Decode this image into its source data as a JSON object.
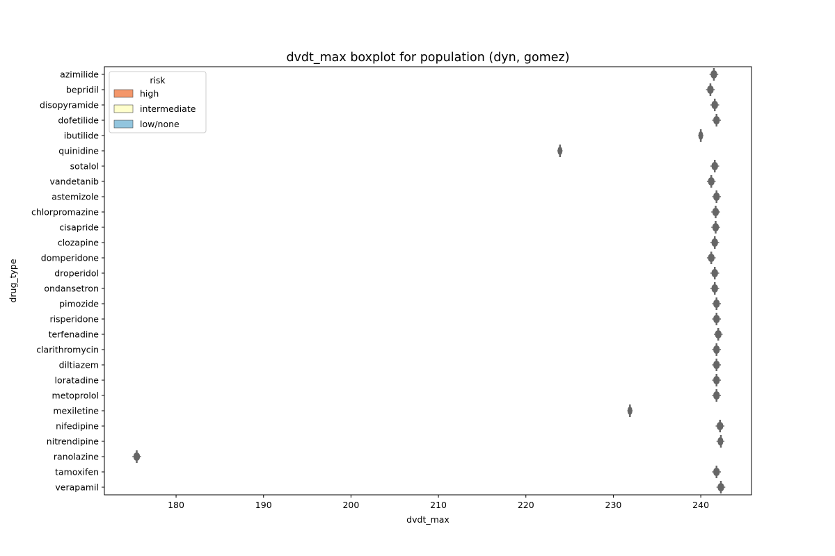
{
  "colors": {
    "high": "#f4976a",
    "intermediate": "#ffffcc",
    "low_none": "#92c5de",
    "box_gray": "#666666",
    "axis": "#000000"
  },
  "chart_data": {
    "type": "boxplot",
    "orientation": "horizontal",
    "title": "dvdt_max boxplot for population (dyn, gomez)",
    "xlabel": "dvdt_max",
    "ylabel": "drug_type",
    "xlim": [
      171.8,
      245.8
    ],
    "xticks": [
      180,
      190,
      200,
      210,
      220,
      230,
      240
    ],
    "legend": {
      "title": "risk",
      "placement": "top-left",
      "entries": [
        {
          "label": "high",
          "color_key": "high"
        },
        {
          "label": "intermediate",
          "color_key": "intermediate"
        },
        {
          "label": "low/none",
          "color_key": "low_none"
        }
      ]
    },
    "categories": [
      "azimilide",
      "bepridil",
      "disopyramide",
      "dofetilide",
      "ibutilide",
      "quinidine",
      "sotalol",
      "vandetanib",
      "astemizole",
      "chlorpromazine",
      "cisapride",
      "clozapine",
      "domperidone",
      "droperidol",
      "ondansetron",
      "pimozide",
      "risperidone",
      "terfenadine",
      "clarithromycin",
      "diltiazem",
      "loratadine",
      "metoprolol",
      "mexiletine",
      "nifedipine",
      "nitrendipine",
      "ranolazine",
      "tamoxifen",
      "verapamil"
    ],
    "boxes": [
      {
        "drug": "azimilide",
        "risk": "high",
        "min": 241.0,
        "q1": 241.2,
        "median": 241.5,
        "q3": 241.8,
        "max": 242.0
      },
      {
        "drug": "bepridil",
        "risk": "high",
        "min": 240.6,
        "q1": 240.8,
        "median": 241.1,
        "q3": 241.4,
        "max": 241.6
      },
      {
        "drug": "disopyramide",
        "risk": "high",
        "min": 241.1,
        "q1": 241.3,
        "median": 241.6,
        "q3": 241.9,
        "max": 242.1
      },
      {
        "drug": "dofetilide",
        "risk": "high",
        "min": 241.3,
        "q1": 241.5,
        "median": 241.8,
        "q3": 242.1,
        "max": 242.3
      },
      {
        "drug": "ibutilide",
        "risk": "high",
        "min": 239.7,
        "q1": 239.8,
        "median": 240.0,
        "q3": 240.2,
        "max": 240.3
      },
      {
        "drug": "quinidine",
        "risk": "high",
        "min": 223.6,
        "q1": 223.7,
        "median": 223.9,
        "q3": 224.1,
        "max": 224.2
      },
      {
        "drug": "sotalol",
        "risk": "high",
        "min": 241.1,
        "q1": 241.3,
        "median": 241.6,
        "q3": 241.9,
        "max": 242.1
      },
      {
        "drug": "vandetanib",
        "risk": "high",
        "min": 240.7,
        "q1": 240.9,
        "median": 241.2,
        "q3": 241.5,
        "max": 241.7
      },
      {
        "drug": "astemizole",
        "risk": "intermediate",
        "min": 241.3,
        "q1": 241.5,
        "median": 241.8,
        "q3": 242.1,
        "max": 242.3
      },
      {
        "drug": "chlorpromazine",
        "risk": "intermediate",
        "min": 241.2,
        "q1": 241.4,
        "median": 241.7,
        "q3": 242.0,
        "max": 242.2
      },
      {
        "drug": "cisapride",
        "risk": "intermediate",
        "min": 241.2,
        "q1": 241.4,
        "median": 241.7,
        "q3": 242.0,
        "max": 242.2
      },
      {
        "drug": "clozapine",
        "risk": "intermediate",
        "min": 241.1,
        "q1": 241.3,
        "median": 241.6,
        "q3": 241.9,
        "max": 242.1
      },
      {
        "drug": "domperidone",
        "risk": "intermediate",
        "min": 240.7,
        "q1": 240.9,
        "median": 241.2,
        "q3": 241.5,
        "max": 241.7
      },
      {
        "drug": "droperidol",
        "risk": "intermediate",
        "min": 241.1,
        "q1": 241.3,
        "median": 241.6,
        "q3": 241.9,
        "max": 242.1
      },
      {
        "drug": "ondansetron",
        "risk": "intermediate",
        "min": 241.1,
        "q1": 241.3,
        "median": 241.6,
        "q3": 241.9,
        "max": 242.1
      },
      {
        "drug": "pimozide",
        "risk": "intermediate",
        "min": 241.3,
        "q1": 241.5,
        "median": 241.8,
        "q3": 242.1,
        "max": 242.3
      },
      {
        "drug": "risperidone",
        "risk": "intermediate",
        "min": 241.3,
        "q1": 241.5,
        "median": 241.8,
        "q3": 242.1,
        "max": 242.3
      },
      {
        "drug": "terfenadine",
        "risk": "intermediate",
        "min": 241.5,
        "q1": 241.7,
        "median": 242.0,
        "q3": 242.3,
        "max": 242.5
      },
      {
        "drug": "clarithromycin",
        "risk": "intermediate",
        "min": 241.3,
        "q1": 241.5,
        "median": 241.8,
        "q3": 242.1,
        "max": 242.3
      },
      {
        "drug": "diltiazem",
        "risk": "low/none",
        "min": 241.3,
        "q1": 241.5,
        "median": 241.8,
        "q3": 242.1,
        "max": 242.3
      },
      {
        "drug": "loratadine",
        "risk": "low/none",
        "min": 241.3,
        "q1": 241.5,
        "median": 241.8,
        "q3": 242.1,
        "max": 242.3
      },
      {
        "drug": "metoprolol",
        "risk": "low/none",
        "min": 241.3,
        "q1": 241.5,
        "median": 241.8,
        "q3": 242.1,
        "max": 242.3
      },
      {
        "drug": "mexiletine",
        "risk": "low/none",
        "min": 231.6,
        "q1": 231.7,
        "median": 231.9,
        "q3": 232.1,
        "max": 232.2
      },
      {
        "drug": "nifedipine",
        "risk": "low/none",
        "min": 241.7,
        "q1": 241.9,
        "median": 242.2,
        "q3": 242.5,
        "max": 242.7
      },
      {
        "drug": "nitrendipine",
        "risk": "low/none",
        "min": 241.8,
        "q1": 242.0,
        "median": 242.3,
        "q3": 242.5,
        "max": 242.7
      },
      {
        "drug": "ranolazine",
        "risk": "low/none",
        "min": 175.0,
        "q1": 175.2,
        "median": 175.5,
        "q3": 175.8,
        "max": 176.0
      },
      {
        "drug": "tamoxifen",
        "risk": "low/none",
        "min": 241.3,
        "q1": 241.5,
        "median": 241.8,
        "q3": 242.1,
        "max": 242.3
      },
      {
        "drug": "verapamil",
        "risk": "low/none",
        "min": 241.8,
        "q1": 242.0,
        "median": 242.3,
        "q3": 242.6,
        "max": 242.8
      }
    ]
  }
}
